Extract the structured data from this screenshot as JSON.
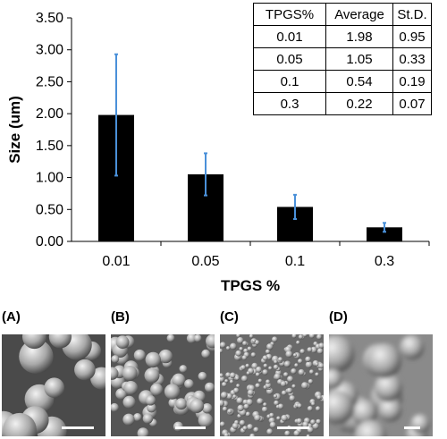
{
  "chart_data": {
    "type": "bar",
    "categories": [
      "0.01",
      "0.05",
      "0.1",
      "0.3"
    ],
    "values": [
      1.98,
      1.05,
      0.54,
      0.22
    ],
    "errors": [
      0.95,
      0.33,
      0.19,
      0.07
    ],
    "xlabel": "TPGS %",
    "ylabel": "Size (um)",
    "ylim": [
      0,
      3.5
    ],
    "yticks": [
      "0.00",
      "0.50",
      "1.00",
      "1.50",
      "2.00",
      "2.50",
      "3.00",
      "3.50"
    ],
    "bar_color": "#000000",
    "error_bar_color": "#4a90d9",
    "grid": false
  },
  "table": {
    "headers": [
      "TPGS%",
      "Average",
      "St.D."
    ],
    "rows": [
      [
        "0.01",
        "1.98",
        "0.95"
      ],
      [
        "0.05",
        "1.05",
        "0.33"
      ],
      [
        "0.1",
        "0.54",
        "0.19"
      ],
      [
        "0.3",
        "0.22",
        "0.07"
      ]
    ]
  },
  "panels": [
    {
      "label": "(A)"
    },
    {
      "label": "(B)"
    },
    {
      "label": "(C)"
    },
    {
      "label": "(D)"
    }
  ]
}
